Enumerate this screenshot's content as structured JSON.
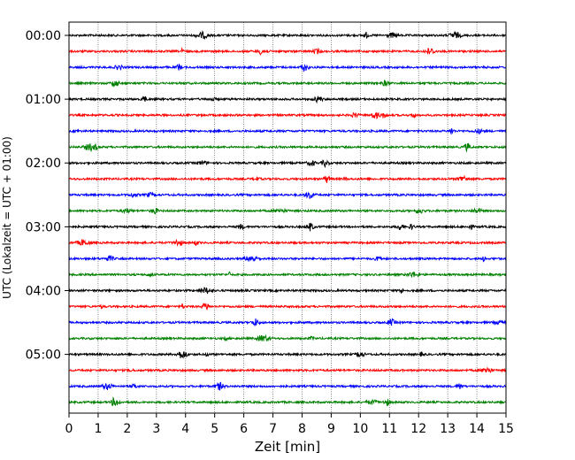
{
  "chart_data": {
    "type": "line",
    "title": "",
    "xlabel": "Zeit  [min]",
    "ylabel": "UTC (Lokalzeit = UTC + 01:00)",
    "xlim": [
      0,
      15
    ],
    "x_ticks": [
      "0",
      "1",
      "2",
      "3",
      "4",
      "5",
      "6",
      "7",
      "8",
      "9",
      "10",
      "11",
      "12",
      "13",
      "14",
      "15"
    ],
    "y_ticks": [
      "00:00",
      "01:00",
      "02:00",
      "03:00",
      "04:00",
      "05:00"
    ],
    "grid": "vertical dotted at each minute",
    "trace_interval_minutes": 15,
    "colors": [
      "#000000",
      "#ff0000",
      "#0000ff",
      "#008000"
    ],
    "traces": [
      {
        "utc": "00:00",
        "color": "#000000"
      },
      {
        "utc": "00:15",
        "color": "#ff0000"
      },
      {
        "utc": "00:30",
        "color": "#0000ff"
      },
      {
        "utc": "00:45",
        "color": "#008000"
      },
      {
        "utc": "01:00",
        "color": "#000000"
      },
      {
        "utc": "01:15",
        "color": "#ff0000"
      },
      {
        "utc": "01:30",
        "color": "#0000ff"
      },
      {
        "utc": "01:45",
        "color": "#008000"
      },
      {
        "utc": "02:00",
        "color": "#000000"
      },
      {
        "utc": "02:15",
        "color": "#ff0000"
      },
      {
        "utc": "02:30",
        "color": "#0000ff"
      },
      {
        "utc": "02:45",
        "color": "#008000"
      },
      {
        "utc": "03:00",
        "color": "#000000"
      },
      {
        "utc": "03:15",
        "color": "#ff0000"
      },
      {
        "utc": "03:30",
        "color": "#0000ff"
      },
      {
        "utc": "03:45",
        "color": "#008000"
      },
      {
        "utc": "04:00",
        "color": "#000000"
      },
      {
        "utc": "04:15",
        "color": "#ff0000"
      },
      {
        "utc": "04:30",
        "color": "#0000ff"
      },
      {
        "utc": "04:45",
        "color": "#008000"
      },
      {
        "utc": "05:00",
        "color": "#000000"
      },
      {
        "utc": "05:15",
        "color": "#ff0000"
      },
      {
        "utc": "05:30",
        "color": "#0000ff"
      },
      {
        "utc": "05:45",
        "color": "#008000"
      }
    ]
  }
}
